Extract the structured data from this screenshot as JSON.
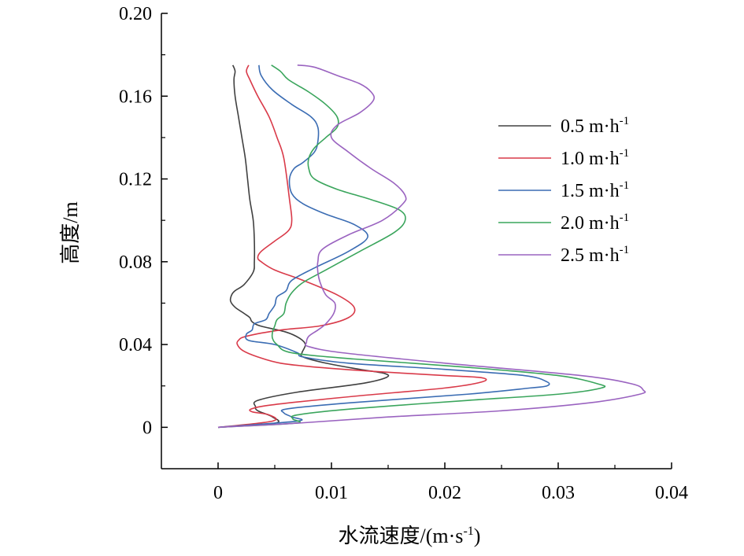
{
  "chart_data": {
    "type": "line",
    "title": "",
    "xlabel": "水流速度/(m·s",
    "xlabel_sup": "-1",
    "xlabel_tail": ")",
    "ylabel": "高度/m",
    "xlim": [
      -0.005,
      0.04
    ],
    "ylim": [
      -0.02,
      0.2
    ],
    "xticks": [
      0,
      0.01,
      0.02,
      0.03,
      0.04
    ],
    "xtick_labels": [
      "0",
      "0.01",
      "0.02",
      "0.03",
      "0.04"
    ],
    "yticks": [
      0,
      0.04,
      0.08,
      0.12,
      0.16,
      0.2
    ],
    "ytick_labels": [
      "0",
      "0.04",
      "0.08",
      "0.12",
      "0.16",
      "0.20"
    ],
    "grid": false,
    "legend_position": "right",
    "series": [
      {
        "name": "0.5 m·h",
        "name_sup": "-1",
        "color": "#404040",
        "points": [
          [
            0.0,
            0.0
          ],
          [
            0.005,
            0.002
          ],
          [
            0.0048,
            0.005
          ],
          [
            0.0035,
            0.008
          ],
          [
            0.0033,
            0.01
          ],
          [
            0.0035,
            0.013
          ],
          [
            0.007,
            0.017
          ],
          [
            0.0125,
            0.021
          ],
          [
            0.0148,
            0.024
          ],
          [
            0.0147,
            0.026
          ],
          [
            0.0125,
            0.028
          ],
          [
            0.0095,
            0.031
          ],
          [
            0.0075,
            0.034
          ],
          [
            0.0074,
            0.036
          ],
          [
            0.0077,
            0.04
          ],
          [
            0.0072,
            0.043
          ],
          [
            0.006,
            0.046
          ],
          [
            0.0037,
            0.049
          ],
          [
            0.003,
            0.051
          ],
          [
            0.0028,
            0.053
          ],
          [
            0.0023,
            0.055
          ],
          [
            0.0015,
            0.058
          ],
          [
            0.0011,
            0.061
          ],
          [
            0.0012,
            0.064
          ],
          [
            0.0015,
            0.066
          ],
          [
            0.0023,
            0.069
          ],
          [
            0.0031,
            0.075
          ],
          [
            0.0032,
            0.08
          ],
          [
            0.0032,
            0.09
          ],
          [
            0.0031,
            0.1
          ],
          [
            0.0028,
            0.11
          ],
          [
            0.0026,
            0.12
          ],
          [
            0.0024,
            0.13
          ],
          [
            0.0021,
            0.14
          ],
          [
            0.0018,
            0.15
          ],
          [
            0.0015,
            0.16
          ],
          [
            0.0014,
            0.168
          ],
          [
            0.0015,
            0.172
          ],
          [
            0.0013,
            0.175
          ]
        ]
      },
      {
        "name": "1.0 m·h",
        "name_sup": "-1",
        "color": "#d93a49",
        "points": [
          [
            0.0,
            0.0
          ],
          [
            0.0048,
            0.003
          ],
          [
            0.0045,
            0.006
          ],
          [
            0.003,
            0.0075
          ],
          [
            0.003,
            0.009
          ],
          [
            0.005,
            0.011
          ],
          [
            0.012,
            0.015
          ],
          [
            0.02,
            0.019
          ],
          [
            0.0233,
            0.022
          ],
          [
            0.0232,
            0.024
          ],
          [
            0.02,
            0.025
          ],
          [
            0.0138,
            0.027
          ],
          [
            0.0088,
            0.029
          ],
          [
            0.0055,
            0.031
          ],
          [
            0.0035,
            0.034
          ],
          [
            0.0022,
            0.037
          ],
          [
            0.0017,
            0.04
          ],
          [
            0.0018,
            0.042
          ],
          [
            0.0025,
            0.044
          ],
          [
            0.0055,
            0.047
          ],
          [
            0.009,
            0.049
          ],
          [
            0.0115,
            0.053
          ],
          [
            0.012,
            0.058
          ],
          [
            0.0105,
            0.064
          ],
          [
            0.0075,
            0.071
          ],
          [
            0.005,
            0.076
          ],
          [
            0.0038,
            0.08
          ],
          [
            0.0035,
            0.082
          ],
          [
            0.0038,
            0.085
          ],
          [
            0.005,
            0.09
          ],
          [
            0.0062,
            0.095
          ],
          [
            0.0065,
            0.1
          ],
          [
            0.0063,
            0.11
          ],
          [
            0.0058,
            0.13
          ],
          [
            0.0052,
            0.14
          ],
          [
            0.0045,
            0.15
          ],
          [
            0.0035,
            0.16
          ],
          [
            0.0028,
            0.168
          ],
          [
            0.0025,
            0.172
          ],
          [
            0.0027,
            0.175
          ]
        ]
      },
      {
        "name": "1.5 m·h",
        "name_sup": "-1",
        "color": "#3a6cb3",
        "points": [
          [
            0.0,
            0.0
          ],
          [
            0.007,
            0.003
          ],
          [
            0.0065,
            0.005
          ],
          [
            0.0058,
            0.007
          ],
          [
            0.0062,
            0.009
          ],
          [
            0.012,
            0.012
          ],
          [
            0.022,
            0.016
          ],
          [
            0.0275,
            0.019
          ],
          [
            0.029,
            0.02
          ],
          [
            0.029,
            0.022
          ],
          [
            0.027,
            0.025
          ],
          [
            0.02,
            0.028
          ],
          [
            0.0115,
            0.031
          ],
          [
            0.0075,
            0.034
          ],
          [
            0.007,
            0.036
          ],
          [
            0.005,
            0.04
          ],
          [
            0.0027,
            0.042
          ],
          [
            0.0025,
            0.045
          ],
          [
            0.003,
            0.047
          ],
          [
            0.0032,
            0.05
          ],
          [
            0.0042,
            0.052
          ],
          [
            0.0045,
            0.055
          ],
          [
            0.005,
            0.059
          ],
          [
            0.0052,
            0.063
          ],
          [
            0.006,
            0.066
          ],
          [
            0.0065,
            0.071
          ],
          [
            0.0085,
            0.077
          ],
          [
            0.0115,
            0.085
          ],
          [
            0.0132,
            0.092
          ],
          [
            0.012,
            0.098
          ],
          [
            0.0095,
            0.103
          ],
          [
            0.0075,
            0.108
          ],
          [
            0.0065,
            0.113
          ],
          [
            0.0063,
            0.12
          ],
          [
            0.0067,
            0.125
          ],
          [
            0.0075,
            0.128
          ],
          [
            0.0085,
            0.133
          ],
          [
            0.0088,
            0.138
          ],
          [
            0.0088,
            0.145
          ],
          [
            0.0082,
            0.15
          ],
          [
            0.0065,
            0.156
          ],
          [
            0.0048,
            0.163
          ],
          [
            0.0038,
            0.17
          ],
          [
            0.0036,
            0.175
          ]
        ]
      },
      {
        "name": "2.0 m·h",
        "name_sup": "-1",
        "color": "#3aa55c",
        "points": [
          [
            0.0,
            0.0
          ],
          [
            0.0068,
            0.002
          ],
          [
            0.0066,
            0.004
          ],
          [
            0.007,
            0.006
          ],
          [
            0.012,
            0.009
          ],
          [
            0.022,
            0.013
          ],
          [
            0.03,
            0.016
          ],
          [
            0.0338,
            0.019
          ],
          [
            0.0335,
            0.021
          ],
          [
            0.03,
            0.025
          ],
          [
            0.022,
            0.029
          ],
          [
            0.012,
            0.033
          ],
          [
            0.0065,
            0.036
          ],
          [
            0.0052,
            0.04
          ],
          [
            0.0048,
            0.043
          ],
          [
            0.0048,
            0.046
          ],
          [
            0.005,
            0.049
          ],
          [
            0.0052,
            0.052
          ],
          [
            0.0058,
            0.055
          ],
          [
            0.006,
            0.06
          ],
          [
            0.0065,
            0.065
          ],
          [
            0.0075,
            0.07
          ],
          [
            0.0095,
            0.076
          ],
          [
            0.0125,
            0.085
          ],
          [
            0.0155,
            0.094
          ],
          [
            0.0165,
            0.1
          ],
          [
            0.016,
            0.105
          ],
          [
            0.0135,
            0.11
          ],
          [
            0.0105,
            0.115
          ],
          [
            0.0085,
            0.12
          ],
          [
            0.008,
            0.125
          ],
          [
            0.008,
            0.13
          ],
          [
            0.0085,
            0.135
          ],
          [
            0.0095,
            0.14
          ],
          [
            0.0105,
            0.145
          ],
          [
            0.0105,
            0.15
          ],
          [
            0.0095,
            0.156
          ],
          [
            0.008,
            0.162
          ],
          [
            0.0062,
            0.168
          ],
          [
            0.0055,
            0.172
          ],
          [
            0.0047,
            0.175
          ]
        ]
      },
      {
        "name": "2.5 m·h",
        "name_sup": "-1",
        "color": "#9a63c0",
        "points": [
          [
            0.0,
            0.0
          ],
          [
            0.007,
            0.002
          ],
          [
            0.015,
            0.005
          ],
          [
            0.025,
            0.008
          ],
          [
            0.033,
            0.012
          ],
          [
            0.0372,
            0.016
          ],
          [
            0.0375,
            0.018
          ],
          [
            0.0365,
            0.021
          ],
          [
            0.032,
            0.025
          ],
          [
            0.02,
            0.031
          ],
          [
            0.011,
            0.036
          ],
          [
            0.008,
            0.039
          ],
          [
            0.0078,
            0.041
          ],
          [
            0.008,
            0.044
          ],
          [
            0.0088,
            0.047
          ],
          [
            0.0095,
            0.05
          ],
          [
            0.0102,
            0.055
          ],
          [
            0.0103,
            0.06
          ],
          [
            0.0095,
            0.064
          ],
          [
            0.009,
            0.07
          ],
          [
            0.0088,
            0.075
          ],
          [
            0.0088,
            0.08
          ],
          [
            0.0092,
            0.086
          ],
          [
            0.0115,
            0.093
          ],
          [
            0.0145,
            0.1
          ],
          [
            0.0163,
            0.108
          ],
          [
            0.0165,
            0.112
          ],
          [
            0.0155,
            0.118
          ],
          [
            0.0135,
            0.125
          ],
          [
            0.0115,
            0.133
          ],
          [
            0.01,
            0.14
          ],
          [
            0.0105,
            0.146
          ],
          [
            0.0125,
            0.152
          ],
          [
            0.0137,
            0.158
          ],
          [
            0.0135,
            0.162
          ],
          [
            0.0125,
            0.166
          ],
          [
            0.0105,
            0.17
          ],
          [
            0.0085,
            0.174
          ],
          [
            0.007,
            0.175
          ]
        ]
      }
    ]
  }
}
